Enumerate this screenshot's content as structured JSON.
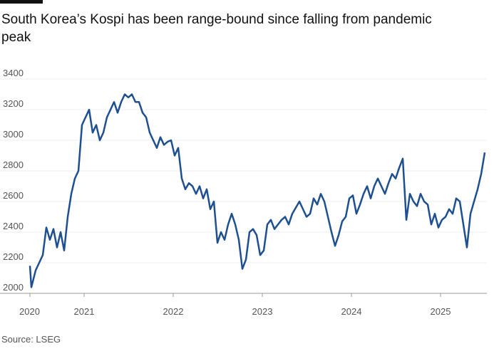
{
  "chart_data": {
    "type": "line",
    "title": "South Korea’s Kospi has been range-bound since falling from pandemic peak",
    "source": "Source: LSEG",
    "x": [
      2020.392,
      2020.408,
      2020.456,
      2020.496,
      2020.536,
      2020.576,
      2020.616,
      2020.656,
      2020.696,
      2020.736,
      2020.776,
      2020.816,
      2020.856,
      2020.896,
      2020.936,
      2020.976,
      2021.016,
      2021.056,
      2021.096,
      2021.136,
      2021.176,
      2021.216,
      2021.256,
      2021.296,
      2021.336,
      2021.376,
      2021.416,
      2021.456,
      2021.496,
      2021.536,
      2021.576,
      2021.616,
      2021.656,
      2021.696,
      2021.736,
      2021.776,
      2021.816,
      2021.856,
      2021.896,
      2021.936,
      2021.976,
      2022.016,
      2022.056,
      2022.096,
      2022.136,
      2022.176,
      2022.216,
      2022.256,
      2022.296,
      2022.336,
      2022.376,
      2022.416,
      2022.456,
      2022.496,
      2022.536,
      2022.576,
      2022.616,
      2022.656,
      2022.696,
      2022.736,
      2022.776,
      2022.816,
      2022.856,
      2022.896,
      2022.936,
      2022.976,
      2023.016,
      2023.056,
      2023.096,
      2023.136,
      2023.176,
      2023.216,
      2023.256,
      2023.296,
      2023.336,
      2023.376,
      2023.416,
      2023.456,
      2023.496,
      2023.536,
      2023.576,
      2023.616,
      2023.656,
      2023.696,
      2023.736,
      2023.776,
      2023.816,
      2023.856,
      2023.896,
      2023.936,
      2023.976,
      2024.016,
      2024.056,
      2024.096,
      2024.136,
      2024.176,
      2024.216,
      2024.256,
      2024.296,
      2024.336,
      2024.376,
      2024.416,
      2024.456,
      2024.496,
      2024.536,
      2024.576,
      2024.616,
      2024.656,
      2024.696,
      2024.736,
      2024.776,
      2024.816,
      2024.856,
      2024.896,
      2024.936,
      2024.976,
      2025.016,
      2025.056,
      2025.096,
      2025.136,
      2025.176,
      2025.216,
      2025.256,
      2025.296,
      2025.336,
      2025.376,
      2025.416,
      2025.456,
      2025.496
    ],
    "series": [
      {
        "name": "Kospi",
        "color": "#1d4f91",
        "values": [
          2180,
          2040,
          2150,
          2200,
          2250,
          2430,
          2350,
          2420,
          2300,
          2400,
          2280,
          2500,
          2650,
          2750,
          2800,
          3100,
          3150,
          3200,
          3050,
          3100,
          3000,
          3050,
          3150,
          3200,
          3250,
          3180,
          3250,
          3300,
          3280,
          3300,
          3250,
          3250,
          3180,
          3150,
          3050,
          3000,
          2950,
          3020,
          2970,
          2990,
          3000,
          2900,
          2950,
          2750,
          2680,
          2720,
          2700,
          2650,
          2700,
          2620,
          2680,
          2550,
          2600,
          2330,
          2400,
          2350,
          2450,
          2520,
          2450,
          2350,
          2160,
          2220,
          2400,
          2420,
          2380,
          2250,
          2280,
          2450,
          2480,
          2420,
          2450,
          2480,
          2500,
          2450,
          2520,
          2560,
          2600,
          2550,
          2500,
          2520,
          2620,
          2580,
          2650,
          2600,
          2500,
          2400,
          2310,
          2380,
          2470,
          2500,
          2620,
          2640,
          2520,
          2580,
          2650,
          2700,
          2620,
          2700,
          2750,
          2700,
          2650,
          2720,
          2780,
          2750,
          2820,
          2880,
          2480,
          2650,
          2600,
          2570,
          2650,
          2600,
          2580,
          2450,
          2520,
          2430,
          2480,
          2500,
          2550,
          2520,
          2620,
          2600,
          2450,
          2300,
          2520,
          2600,
          2680,
          2780,
          2920
        ]
      }
    ],
    "xlim": [
      2020.392,
      2025.52
    ],
    "xticks": [
      {
        "value": 2020.392,
        "label": "2020"
      },
      2021,
      2022,
      2023,
      2024,
      2025
    ],
    "ylim": [
      2000,
      3400
    ],
    "yticks": [
      2000,
      2200,
      2400,
      2600,
      2800,
      3000,
      3200,
      3400
    ],
    "grid": true
  }
}
